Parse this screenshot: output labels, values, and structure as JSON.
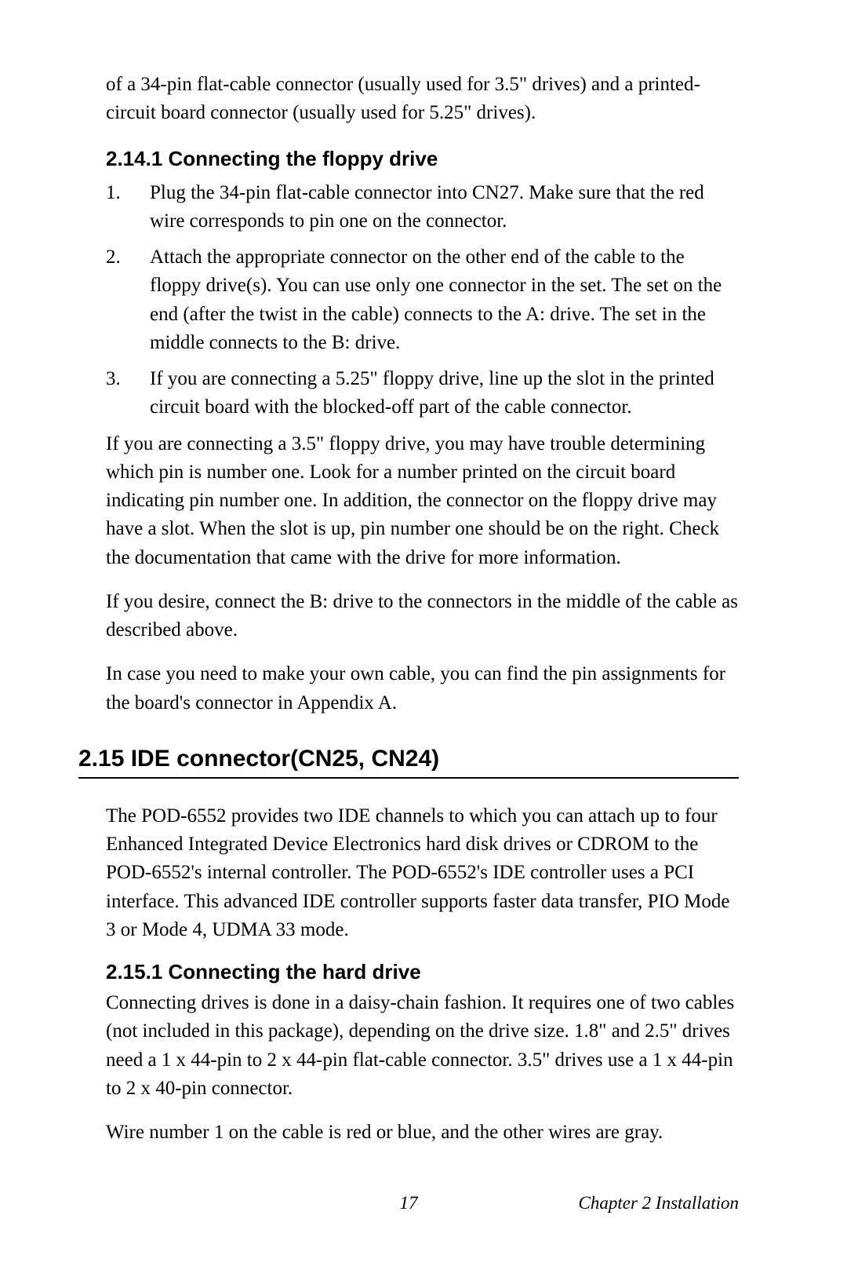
{
  "intro_para": "of a 34-pin flat-cable connector (usually used for 3.5\" drives) and a printed-circuit board connector (usually used for 5.25\" drives).",
  "section_2_14_1": {
    "heading": "2.14.1 Connecting the floppy drive",
    "items": [
      {
        "num": "1.",
        "text": "Plug the 34-pin flat-cable connector into CN27. Make sure that the red wire corresponds to pin one on the connector."
      },
      {
        "num": "2.",
        "text": "Attach the appropriate connector on the other end of the cable to the floppy drive(s). You can use only one connector in the set. The set on the end (after the twist in the cable) connects to the A: drive. The set in the middle connects to the B: drive."
      },
      {
        "num": "3.",
        "text": "If you are connecting a 5.25\" floppy drive, line up the slot in the printed circuit board with the blocked-off part of the cable connector."
      }
    ],
    "para1": "If you are connecting a 3.5\" floppy drive, you may have trouble determining which pin is number one. Look for a number printed on the circuit board indicating pin number one. In addition, the connector on the floppy drive may have a slot. When the slot is up, pin number one should be on the right. Check the documentation that came with the drive for more information.",
    "para2": "If you desire, connect the B: drive to the connectors in the middle of the cable as described above.",
    "para3": "In case you need to make your own cable, you can find the pin assignments for the board's connector in Appendix A."
  },
  "section_2_15": {
    "heading": "2.15  IDE connector(CN25, CN24)",
    "para1": "The POD-6552 provides two IDE channels to which you can attach up to four Enhanced Integrated Device Electronics hard disk drives or CDROM to the POD-6552's internal controller. The POD-6552's IDE controller uses a PCI  interface. This advanced IDE controller supports faster data transfer, PIO Mode 3 or Mode 4, UDMA 33 mode."
  },
  "section_2_15_1": {
    "heading": "2.15.1 Connecting the hard drive",
    "para1": "Connecting drives is done in a daisy-chain fashion. It requires one of two cables (not included in this package), depending on the drive size. 1.8\" and 2.5\" drives need a 1 x 44-pin to 2 x 44-pin flat-cable connector. 3.5\" drives use a 1 x 44-pin to 2 x 40-pin connector.",
    "para2": "Wire number 1 on the cable is red or blue, and the other wires are gray."
  },
  "footer": {
    "page_num": "17",
    "chapter": "Chapter 2  Installation"
  }
}
